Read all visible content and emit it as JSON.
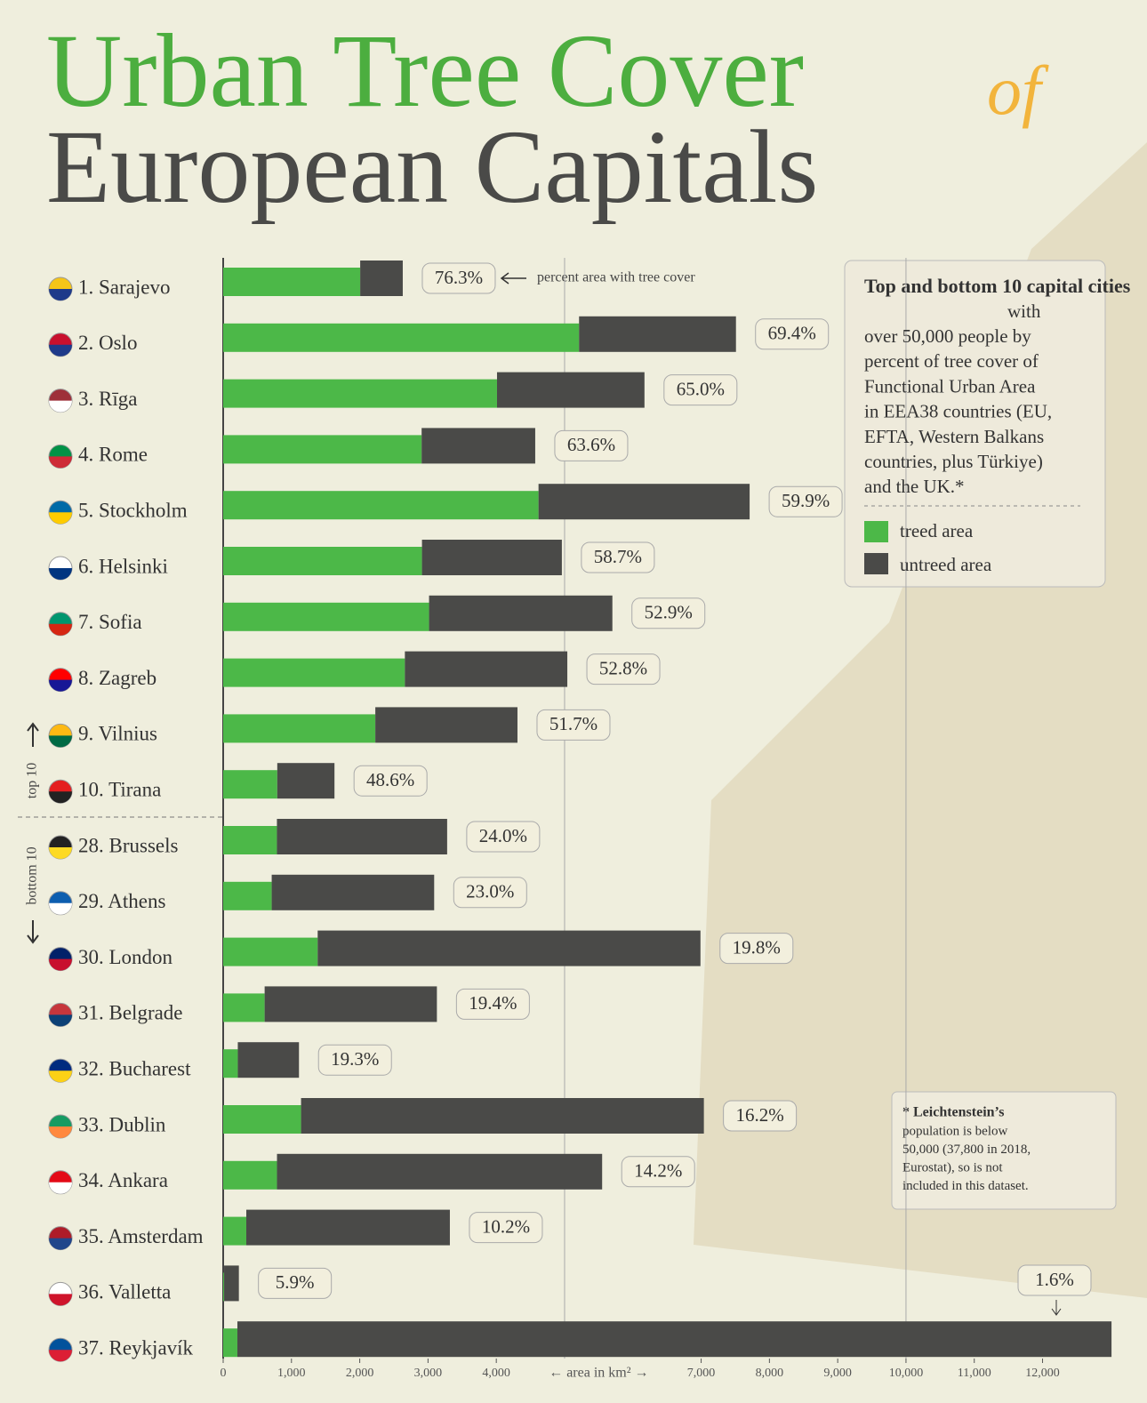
{
  "chart_data": {
    "type": "bar",
    "title": "Urban Tree Cover",
    "title_connector": "of",
    "subtitle": "European Capitals",
    "categories": [
      "1. Sarajevo",
      "2. Oslo",
      "3. Rīga",
      "4. Rome",
      "5. Stockholm",
      "6. Helsinki",
      "7. Sofia",
      "8. Zagreb",
      "9. Vilnius",
      "10. Tirana",
      "28. Brussels",
      "29. Athens",
      "30. London",
      "31. Belgrade",
      "32. Bucharest",
      "33. Dublin",
      "34. Ankara",
      "35. Amsterdam",
      "36. Valletta",
      "37. Reykjavík"
    ],
    "values": [
      2630,
      7510,
      6170,
      4570,
      7710,
      4960,
      5700,
      5040,
      4310,
      1630,
      3280,
      3090,
      6990,
      3130,
      1110,
      7040,
      5550,
      3320,
      230,
      13010
    ],
    "percent": [
      76.3,
      69.4,
      65.0,
      63.6,
      59.9,
      58.7,
      52.9,
      52.8,
      51.7,
      48.6,
      24.0,
      23.0,
      19.8,
      19.4,
      19.3,
      16.2,
      14.2,
      10.2,
      5.9,
      1.6
    ],
    "value_labels": [
      "76.3%",
      "69.4%",
      "65.0%",
      "63.6%",
      "59.9%",
      "58.7%",
      "52.9%",
      "52.8%",
      "51.7%",
      "48.6%",
      "24.0%",
      "23.0%",
      "19.8%",
      "19.4%",
      "19.3%",
      "16.2%",
      "14.2%",
      "10.2%",
      "5.9%",
      "1.6%"
    ],
    "treed_color": "#4cb848",
    "untreed_color": "#4a4a48",
    "xlabel": "← area in km² →",
    "xlim": [
      0,
      13100
    ],
    "xticks": [
      0,
      {
        "value": 1000,
        "label": "1,000"
      },
      {
        "value": 2000,
        "label": "2,000"
      },
      {
        "value": 3000,
        "label": "3,000"
      },
      {
        "value": 4000,
        "label": "4,000"
      },
      {
        "value": 7000,
        "label": "7,000"
      },
      {
        "value": 8000,
        "label": "8,000"
      },
      {
        "value": 9000,
        "label": "9,000"
      },
      {
        "value": 10000,
        "label": "10,000"
      },
      {
        "value": 11000,
        "label": "11,000"
      },
      {
        "value": 12000,
        "label": "12,000"
      }
    ],
    "grid_x": [
      5000,
      10000
    ],
    "annotation": "percent area with tree cover",
    "group_labels": [
      "top 10",
      "bottom 10"
    ],
    "legend_intro_bold": "Top and bottom 10 capital cities",
    "legend_intro": [
      "with",
      "over 50,000 people by",
      "percent of tree cover of",
      "Functional Urban Area",
      "in EEA38 countries (EU,",
      "EFTA, Western Balkans",
      "countries, plus Türkiye)",
      "and the UK.*"
    ],
    "legend": [
      "treed area",
      "untreed area"
    ],
    "note_bold": "* Leichtenstein’s",
    "note": [
      "population is below",
      "50,000 (37,800 in 2018,",
      "Eurostat), so is not",
      "included in this dataset."
    ]
  }
}
